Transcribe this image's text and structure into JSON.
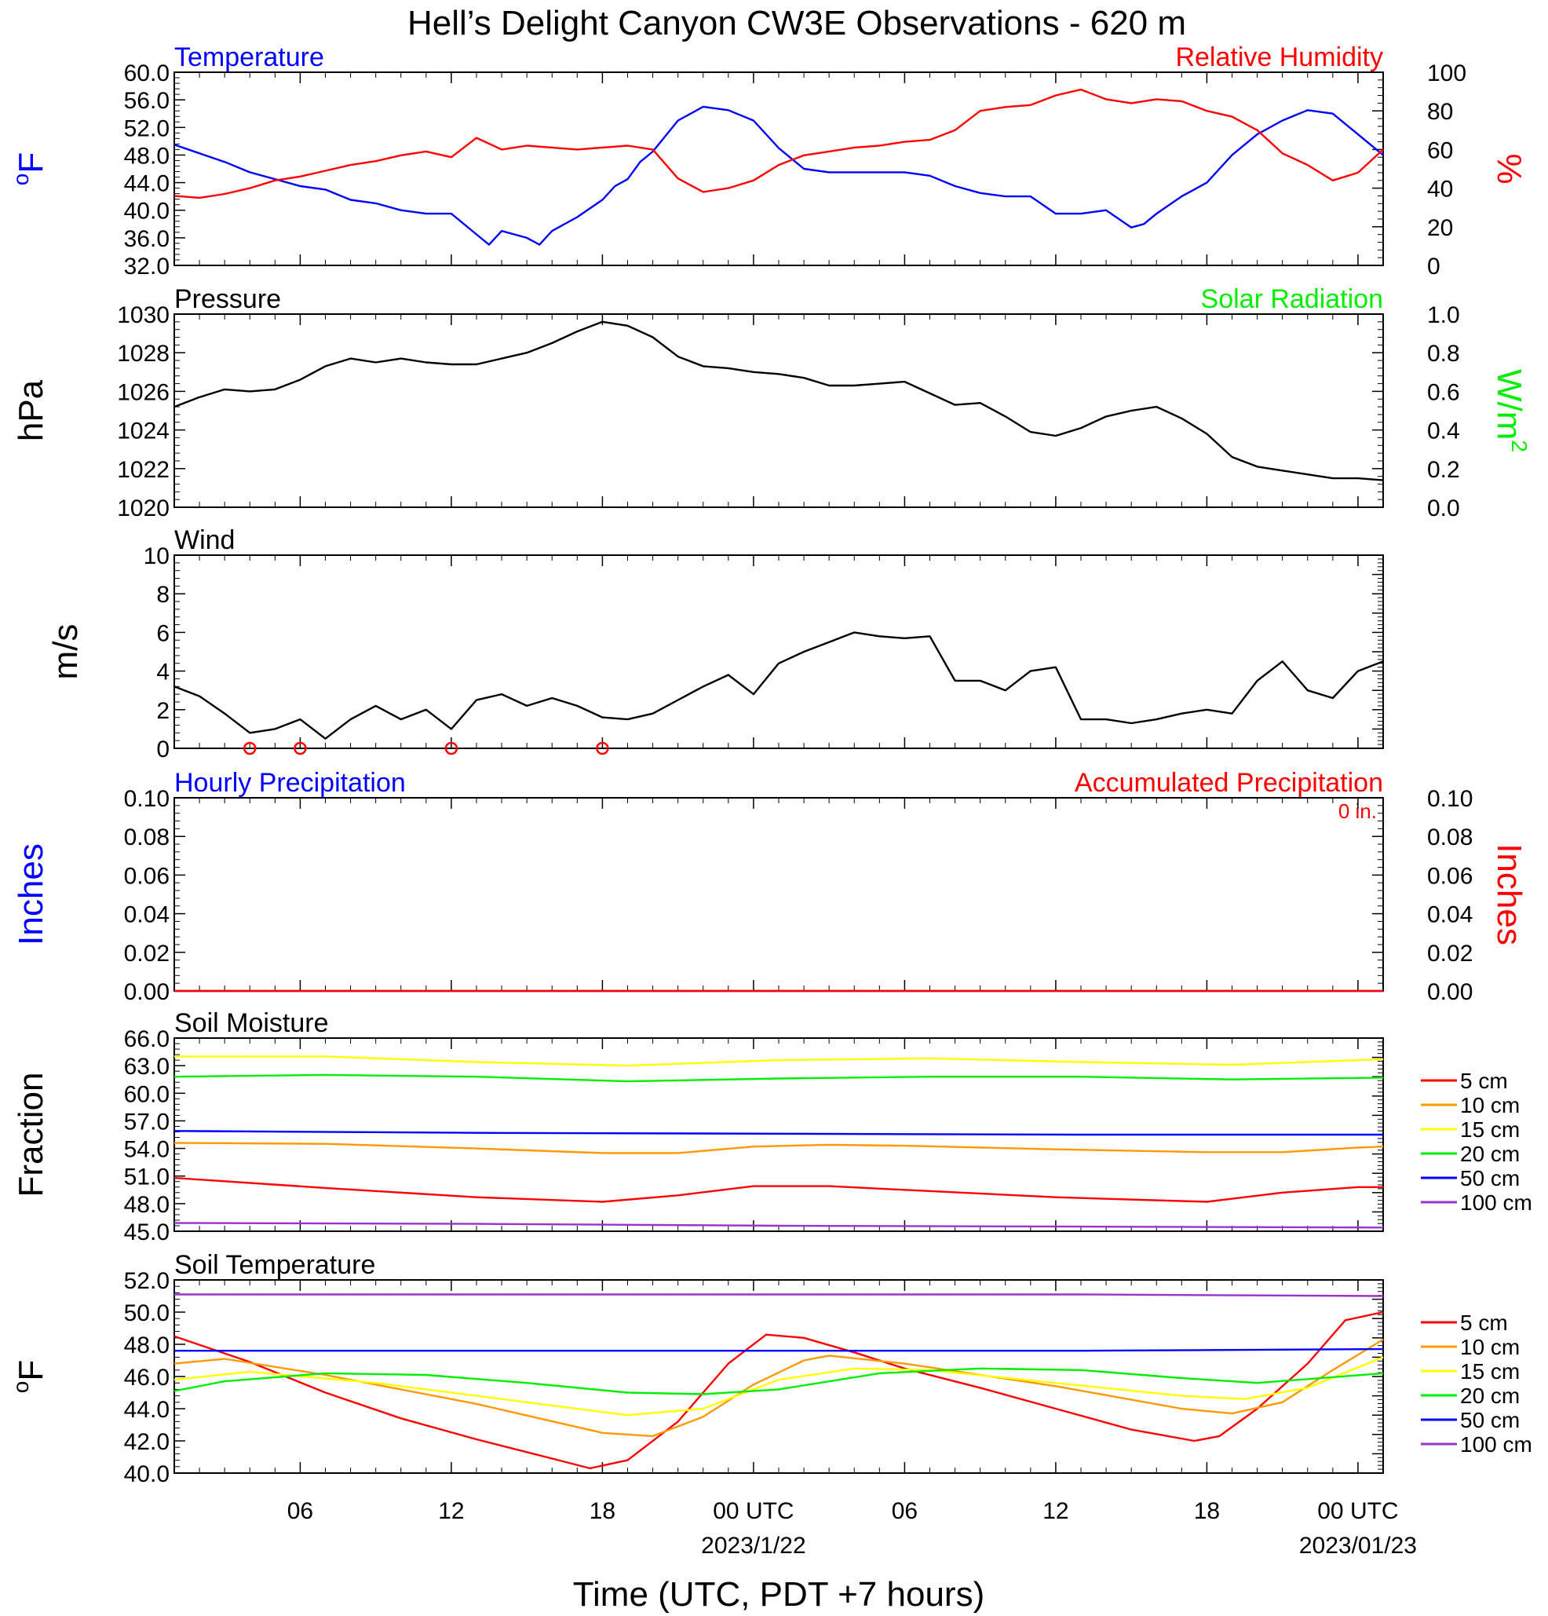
{
  "title": "Hell’s Delight Canyon CW3E Observations - 620 m",
  "xaxis": {
    "label": "Time (UTC, PDT +7 hours)",
    "range_hours": [
      0,
      48
    ],
    "ticks": [
      {
        "h": 5,
        "label": "06",
        "date": ""
      },
      {
        "h": 11,
        "label": "12",
        "date": ""
      },
      {
        "h": 17,
        "label": "18",
        "date": ""
      },
      {
        "h": 23,
        "label": "00 UTC",
        "date": "2023/1/22"
      },
      {
        "h": 29,
        "label": "06",
        "date": ""
      },
      {
        "h": 35,
        "label": "12",
        "date": ""
      },
      {
        "h": 41,
        "label": "18",
        "date": ""
      },
      {
        "h": 47,
        "label": "00 UTC",
        "date": "2023/01/23"
      }
    ]
  },
  "colors": {
    "blue": "#0000ff",
    "red": "#ff0000",
    "green": "#00ee00",
    "black": "#000000",
    "orange": "#ff9900",
    "yellow": "#ffff00",
    "purple": "#9933cc",
    "soil_5": "#ff0000",
    "soil_10": "#ff9900",
    "soil_15": "#ffff00",
    "soil_20": "#00ee00",
    "soil_50": "#0000ff",
    "soil_100": "#9933cc"
  },
  "chart_data": [
    {
      "type": "line",
      "panel": "temp_rh",
      "title_left": "Temperature",
      "title_right": "Relative Humidity",
      "ylabel_left": "°F",
      "ylabel_left_sup": "o",
      "ylabel_left_main": "F",
      "ylabel_right": "%",
      "ylim_left": [
        32,
        60
      ],
      "ylim_right": [
        0,
        100
      ],
      "yticks_left": [
        "32.0",
        "36.0",
        "40.0",
        "44.0",
        "48.0",
        "52.0",
        "56.0",
        "60.0"
      ],
      "yticks_right": [
        "0",
        "20",
        "40",
        "60",
        "80",
        "100"
      ],
      "series": [
        {
          "name": "Temperature",
          "axis": "left",
          "color": "blue",
          "x": [
            0,
            2,
            3,
            5,
            6,
            7,
            8,
            9,
            10,
            11,
            12,
            12.5,
            13,
            14,
            14.5,
            15,
            16,
            17,
            17.5,
            18,
            18.5,
            19,
            20,
            21,
            22,
            23,
            24,
            25,
            26,
            27,
            28,
            29,
            30,
            31,
            32,
            33,
            34,
            35,
            36,
            37,
            38,
            38.5,
            39,
            40,
            41,
            42,
            43,
            44,
            45,
            46,
            47,
            48
          ],
          "y": [
            49.5,
            47,
            45.5,
            43.5,
            43,
            41.5,
            41,
            40,
            39.5,
            39.5,
            36.5,
            35,
            37,
            36,
            35,
            37,
            39,
            41.5,
            43.5,
            44.5,
            47,
            48.5,
            53,
            55,
            54.5,
            53,
            49,
            46,
            45.5,
            45.5,
            45.5,
            45.5,
            45,
            43.5,
            42.5,
            42,
            42,
            39.5,
            39.5,
            40,
            37.5,
            38,
            39.5,
            42,
            44,
            48,
            51,
            53,
            54.5,
            54,
            51,
            48
          ]
        },
        {
          "name": "Relative Humidity",
          "axis": "right",
          "color": "red",
          "x": [
            0,
            1,
            2,
            3,
            4,
            5,
            6,
            7,
            8,
            9,
            10,
            11,
            12,
            13,
            14,
            15,
            16,
            17,
            18,
            19,
            20,
            21,
            22,
            23,
            24,
            25,
            26,
            27,
            28,
            29,
            30,
            31,
            32,
            33,
            34,
            35,
            36,
            37,
            38,
            39,
            40,
            41,
            42,
            43,
            44,
            45,
            46,
            47,
            48
          ],
          "y": [
            36,
            35,
            37,
            40,
            44,
            46,
            49,
            52,
            54,
            57,
            59,
            56,
            66,
            60,
            62,
            61,
            60,
            61,
            62,
            60,
            45,
            38,
            40,
            44,
            52,
            57,
            59,
            61,
            62,
            64,
            65,
            70,
            80,
            82,
            83,
            88,
            91,
            86,
            84,
            86,
            85,
            80,
            77,
            70,
            58,
            52,
            44,
            48,
            60
          ]
        }
      ]
    },
    {
      "type": "line",
      "panel": "pressure",
      "title_left": "Pressure",
      "title_right": "Solar Radiation",
      "ylabel_left": "hPa",
      "ylabel_right": "W/m²",
      "ylabel_right_main": "W/m",
      "ylabel_right_sup": "2",
      "ylim_left": [
        1020,
        1030
      ],
      "ylim_right": [
        0.0,
        1.0
      ],
      "yticks_left": [
        "1020",
        "1022",
        "1024",
        "1026",
        "1028",
        "1030"
      ],
      "yticks_right": [
        "0.0",
        "0.2",
        "0.4",
        "0.6",
        "0.8",
        "1.0"
      ],
      "series": [
        {
          "name": "Pressure",
          "axis": "left",
          "color": "black",
          "x": [
            0,
            1,
            2,
            3,
            4,
            5,
            6,
            7,
            8,
            9,
            10,
            11,
            12,
            13,
            14,
            15,
            16,
            17,
            18,
            19,
            20,
            21,
            22,
            23,
            24,
            25,
            26,
            27,
            28,
            29,
            30,
            31,
            32,
            33,
            34,
            35,
            36,
            37,
            38,
            39,
            40,
            41,
            42,
            43,
            44,
            45,
            46,
            47,
            48
          ],
          "y": [
            1025.2,
            1025.7,
            1026.1,
            1026.0,
            1026.1,
            1026.6,
            1027.3,
            1027.7,
            1027.5,
            1027.7,
            1027.5,
            1027.4,
            1027.4,
            1027.7,
            1028.0,
            1028.5,
            1029.1,
            1029.6,
            1029.4,
            1028.8,
            1027.8,
            1027.3,
            1027.2,
            1027.0,
            1026.9,
            1026.7,
            1026.3,
            1026.3,
            1026.4,
            1026.5,
            1025.9,
            1025.3,
            1025.4,
            1024.7,
            1023.9,
            1023.7,
            1024.1,
            1024.7,
            1025.0,
            1025.2,
            1024.6,
            1023.8,
            1022.6,
            1022.1,
            1021.9,
            1021.7,
            1021.5,
            1021.5,
            1021.4
          ]
        }
      ]
    },
    {
      "type": "line",
      "panel": "wind",
      "title_left": "Wind",
      "ylabel_left": "m/s",
      "ylim_left": [
        0,
        10
      ],
      "yticks_left": [
        "0",
        "2",
        "4",
        "6",
        "8",
        "10"
      ],
      "calm_hours": [
        3,
        5,
        11,
        17
      ],
      "series": [
        {
          "name": "Wind",
          "axis": "left",
          "color": "black",
          "x": [
            0,
            1,
            2,
            3,
            4,
            5,
            6,
            7,
            8,
            9,
            10,
            11,
            12,
            13,
            14,
            15,
            16,
            17,
            18,
            19,
            20,
            21,
            22,
            23,
            24,
            25,
            26,
            27,
            28,
            29,
            30,
            31,
            32,
            33,
            34,
            35,
            36,
            37,
            38,
            39,
            40,
            41,
            42,
            43,
            44,
            45,
            46,
            47,
            48
          ],
          "y": [
            3.2,
            2.7,
            1.8,
            0.8,
            1.0,
            1.5,
            0.5,
            1.5,
            2.2,
            1.5,
            2.0,
            1.0,
            2.5,
            2.8,
            2.2,
            2.6,
            2.2,
            1.6,
            1.5,
            1.8,
            2.5,
            3.2,
            3.8,
            2.8,
            4.4,
            5.0,
            5.5,
            6.0,
            5.8,
            5.7,
            5.8,
            3.5,
            3.5,
            3.0,
            4.0,
            4.2,
            1.5,
            1.5,
            1.3,
            1.5,
            1.8,
            2.0,
            1.8,
            3.5,
            4.5,
            3.0,
            2.6,
            4.0,
            4.5
          ]
        }
      ]
    },
    {
      "type": "line",
      "panel": "precip",
      "title_left": "Hourly Precipitation",
      "title_right": "Accumulated Precipitation",
      "annotation": "0 in.",
      "ylabel_left": "Inches",
      "ylabel_right": "Inches",
      "ylim_left": [
        0,
        0.1
      ],
      "ylim_right": [
        0,
        0.1
      ],
      "yticks_left": [
        "0.00",
        "0.02",
        "0.04",
        "0.06",
        "0.08",
        "0.10"
      ],
      "yticks_right": [
        "0.00",
        "0.02",
        "0.04",
        "0.06",
        "0.08",
        "0.10"
      ],
      "series": [
        {
          "name": "Hourly Precipitation",
          "axis": "left",
          "color": "blue",
          "x": [
            0,
            48
          ],
          "y": [
            0,
            0
          ]
        },
        {
          "name": "Accumulated Precipitation",
          "axis": "right",
          "color": "red",
          "x": [
            0,
            48
          ],
          "y": [
            0,
            0
          ]
        }
      ]
    },
    {
      "type": "line",
      "panel": "soil_moisture",
      "title_left": "Soil Moisture",
      "ylabel_left": "Fraction",
      "ylim_left": [
        45,
        66
      ],
      "yticks_left": [
        "45.0",
        "48.0",
        "51.0",
        "54.0",
        "57.0",
        "60.0",
        "63.0",
        "66.0"
      ],
      "series": [
        {
          "name": "5 cm",
          "color": "soil_5",
          "x": [
            0,
            6,
            12,
            17,
            20,
            23,
            26,
            29,
            35,
            41,
            44,
            47,
            48
          ],
          "y": [
            50.8,
            49.7,
            48.7,
            48.2,
            48.9,
            49.9,
            49.9,
            49.5,
            48.7,
            48.2,
            49.2,
            49.8,
            49.8
          ]
        },
        {
          "name": "10 cm",
          "color": "soil_10",
          "x": [
            0,
            6,
            12,
            17,
            20,
            23,
            26,
            29,
            35,
            41,
            44,
            47,
            48
          ],
          "y": [
            54.6,
            54.5,
            54.0,
            53.5,
            53.5,
            54.2,
            54.4,
            54.3,
            53.9,
            53.6,
            53.6,
            54.1,
            54.2
          ]
        },
        {
          "name": "15 cm",
          "color": "soil_15",
          "x": [
            0,
            6,
            12,
            18,
            24,
            30,
            36,
            42,
            48
          ],
          "y": [
            64.0,
            64.0,
            63.4,
            63.0,
            63.6,
            63.8,
            63.4,
            63.1,
            63.7
          ]
        },
        {
          "name": "20 cm",
          "color": "soil_20",
          "x": [
            0,
            6,
            12,
            18,
            24,
            30,
            36,
            42,
            48
          ],
          "y": [
            61.8,
            62.0,
            61.8,
            61.3,
            61.6,
            61.8,
            61.8,
            61.5,
            61.7
          ]
        },
        {
          "name": "50 cm",
          "color": "soil_50",
          "x": [
            0,
            12,
            24,
            36,
            48
          ],
          "y": [
            55.9,
            55.7,
            55.6,
            55.5,
            55.5
          ]
        },
        {
          "name": "100 cm",
          "color": "soil_100",
          "x": [
            0,
            12,
            24,
            36,
            48
          ],
          "y": [
            45.9,
            45.8,
            45.6,
            45.5,
            45.4
          ]
        }
      ]
    },
    {
      "type": "line",
      "panel": "soil_temperature",
      "title_left": "Soil Temperature",
      "ylabel_left": "°F",
      "ylabel_left_sup": "o",
      "ylabel_left_main": "F",
      "ylim_left": [
        40,
        52
      ],
      "yticks_left": [
        "40.0",
        "42.0",
        "44.0",
        "46.0",
        "48.0",
        "50.0",
        "52.0"
      ],
      "series": [
        {
          "name": "5 cm",
          "color": "soil_5",
          "x": [
            0,
            3,
            6,
            9,
            12,
            15,
            16.5,
            18,
            20,
            22,
            23.5,
            25,
            27,
            29,
            32,
            35,
            38,
            40.5,
            41.5,
            43,
            45,
            46.5,
            48
          ],
          "y": [
            48.5,
            46.9,
            45.0,
            43.4,
            42.1,
            40.9,
            40.3,
            40.8,
            43.2,
            46.8,
            48.6,
            48.4,
            47.5,
            46.5,
            45.3,
            44.0,
            42.7,
            42.0,
            42.3,
            44.0,
            46.8,
            49.5,
            50.0
          ]
        },
        {
          "name": "10 cm",
          "color": "soil_10",
          "x": [
            0,
            2,
            6,
            12,
            17,
            19,
            21,
            23,
            25,
            26,
            29,
            35,
            40,
            42,
            44,
            46,
            48
          ],
          "y": [
            46.8,
            47.1,
            46.1,
            44.3,
            42.5,
            42.3,
            43.5,
            45.5,
            47.0,
            47.3,
            46.8,
            45.4,
            44.0,
            43.7,
            44.4,
            46.4,
            48.3
          ]
        },
        {
          "name": "15 cm",
          "color": "soil_15",
          "x": [
            0,
            3,
            8,
            13,
            18,
            21,
            24,
            27,
            30,
            35,
            40,
            42.5,
            45,
            48
          ],
          "y": [
            45.8,
            46.3,
            45.6,
            44.6,
            43.6,
            44.0,
            45.8,
            46.5,
            46.4,
            45.6,
            44.8,
            44.6,
            45.3,
            47.2
          ]
        },
        {
          "name": "20 cm",
          "color": "soil_20",
          "x": [
            0,
            2,
            6,
            10,
            14,
            18,
            21,
            24,
            28,
            32,
            36,
            40,
            43,
            48
          ],
          "y": [
            45.1,
            45.7,
            46.2,
            46.1,
            45.6,
            45.0,
            44.9,
            45.2,
            46.2,
            46.5,
            46.4,
            45.9,
            45.6,
            46.2
          ]
        },
        {
          "name": "50 cm",
          "color": "soil_50",
          "x": [
            0,
            12,
            24,
            36,
            48
          ],
          "y": [
            47.6,
            47.6,
            47.6,
            47.6,
            47.7
          ]
        },
        {
          "name": "100 cm",
          "color": "soil_100",
          "x": [
            0,
            12,
            24,
            36,
            48
          ],
          "y": [
            51.1,
            51.1,
            51.1,
            51.1,
            51.0
          ]
        }
      ]
    }
  ]
}
